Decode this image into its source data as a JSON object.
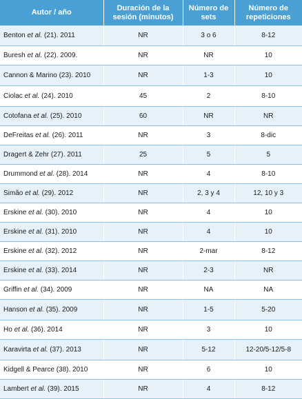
{
  "headers": [
    "Autor / año",
    "Duración de la sesión (minutos)",
    "Número de sets",
    "Número de repeticiones"
  ],
  "rows": [
    {
      "author": "Benton",
      "etal": true,
      "rest": " (21). 2011",
      "duration": "NR",
      "sets": "3 o 6",
      "reps": "8-12"
    },
    {
      "author": "Buresh",
      "etal": true,
      "rest": " (22). 2009.",
      "duration": "NR",
      "sets": "NR",
      "reps": "10"
    },
    {
      "author": "Cannon & Marino",
      "etal": false,
      "rest": " (23). 2010",
      "duration": "NR",
      "sets": "1-3",
      "reps": "10"
    },
    {
      "author": "Ciolac",
      "etal": true,
      "rest": " (24). 2010",
      "duration": "45",
      "sets": "2",
      "reps": "8-10"
    },
    {
      "author": "Cotofana",
      "etal": true,
      "rest": " (25). 2010",
      "duration": "60",
      "sets": "NR",
      "reps": "NR"
    },
    {
      "author": "DeFreitas",
      "etal": true,
      "rest": " (26). 2011",
      "duration": "NR",
      "sets": "3",
      "reps": "8-dic"
    },
    {
      "author": "Dragert & Zehr",
      "etal": false,
      "rest": " (27). 2011",
      "duration": "25",
      "sets": "5",
      "reps": "5"
    },
    {
      "author": "Drummond",
      "etal": true,
      "rest": " (28). 2014",
      "duration": "NR",
      "sets": "4",
      "reps": "8-10"
    },
    {
      "author": "Simão",
      "etal": true,
      "rest": " (29). 2012",
      "duration": "NR",
      "sets": "2, 3 y 4",
      "reps": "12, 10 y 3"
    },
    {
      "author": "Erskine",
      "etal": true,
      "rest": " (30). 2010",
      "duration": "NR",
      "sets": "4",
      "reps": "10"
    },
    {
      "author": "Erskine",
      "etal": true,
      "rest": " (31). 2010",
      "duration": "NR",
      "sets": "4",
      "reps": "10"
    },
    {
      "author": "Erskine",
      "etal": true,
      "rest": " (32). 2012",
      "duration": "NR",
      "sets": "2-mar",
      "reps": "8-12"
    },
    {
      "author": "Erskine",
      "etal": true,
      "rest": " (33). 2014",
      "duration": "NR",
      "sets": "2-3",
      "reps": "NR"
    },
    {
      "author": "Griffin",
      "etal": true,
      "rest": " (34). 2009",
      "duration": "NR",
      "sets": "NA",
      "reps": "NA"
    },
    {
      "author": "Hanson",
      "etal": true,
      "rest": " (35). 2009",
      "duration": "NR",
      "sets": "1-5",
      "reps": "5-20"
    },
    {
      "author": "Ho",
      "etal": true,
      "rest": " (36). 2014",
      "duration": "NR",
      "sets": "3",
      "reps": "10"
    },
    {
      "author": "Karavirta",
      "etal": true,
      "rest": " (37). 2013",
      "duration": "NR",
      "sets": "5-12",
      "reps": "12-20/5-12/5-8"
    },
    {
      "author": "Kidgell & Pearce",
      "etal": false,
      "rest": " (38). 2010",
      "duration": "NR",
      "sets": "6",
      "reps": "10"
    },
    {
      "author": "Lambert",
      "etal": true,
      "rest": " (39). 2015",
      "duration": "NR",
      "sets": "4",
      "reps": "8-12"
    }
  ],
  "etal_text": " et al.",
  "colors": {
    "header_bg": "#4a9fd4",
    "row_alt_bg": "#e6f1fa",
    "row_line": "#8cc3e6"
  }
}
